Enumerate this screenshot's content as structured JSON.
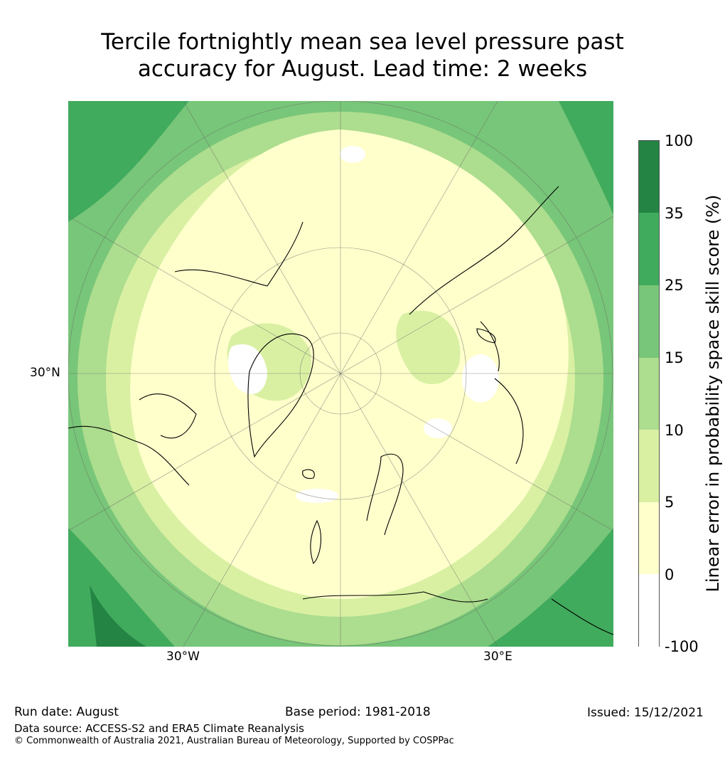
{
  "title_line1": "Tercile fortnightly mean sea level pressure past",
  "title_line2": "accuracy for August. Lead time: 2 weeks",
  "map": {
    "projection": "north-polar-stereographic",
    "lon_labels": [
      "30°W",
      "30°E"
    ],
    "lat_label": "30°N"
  },
  "colorbar": {
    "label": "Linear error in probability space skill score (%)",
    "ticks": [
      "100",
      "35",
      "25",
      "15",
      "10",
      "5",
      "0",
      "-100"
    ],
    "bins": [
      {
        "range": "-100 to 0",
        "color": "#ffffff"
      },
      {
        "range": "0 to 5",
        "color": "#ffffcc"
      },
      {
        "range": "5 to 10",
        "color": "#d9f0a3"
      },
      {
        "range": "10 to 15",
        "color": "#addd8e"
      },
      {
        "range": "15 to 25",
        "color": "#78c679"
      },
      {
        "range": "25 to 35",
        "color": "#41ab5d"
      },
      {
        "range": "35 to 100",
        "color": "#238443"
      }
    ]
  },
  "footer": {
    "run_date": "Run date: August",
    "base_period": "Base period: 1981-2018",
    "issued": "Issued: 15/12/2021",
    "data_source": "Data source: ACCESS-S2 and ERA5 Climate Reanalysis",
    "copyright": "© Commonwealth of Australia 2021, Australian Bureau of Meteorology, Supported by COSPPac"
  }
}
